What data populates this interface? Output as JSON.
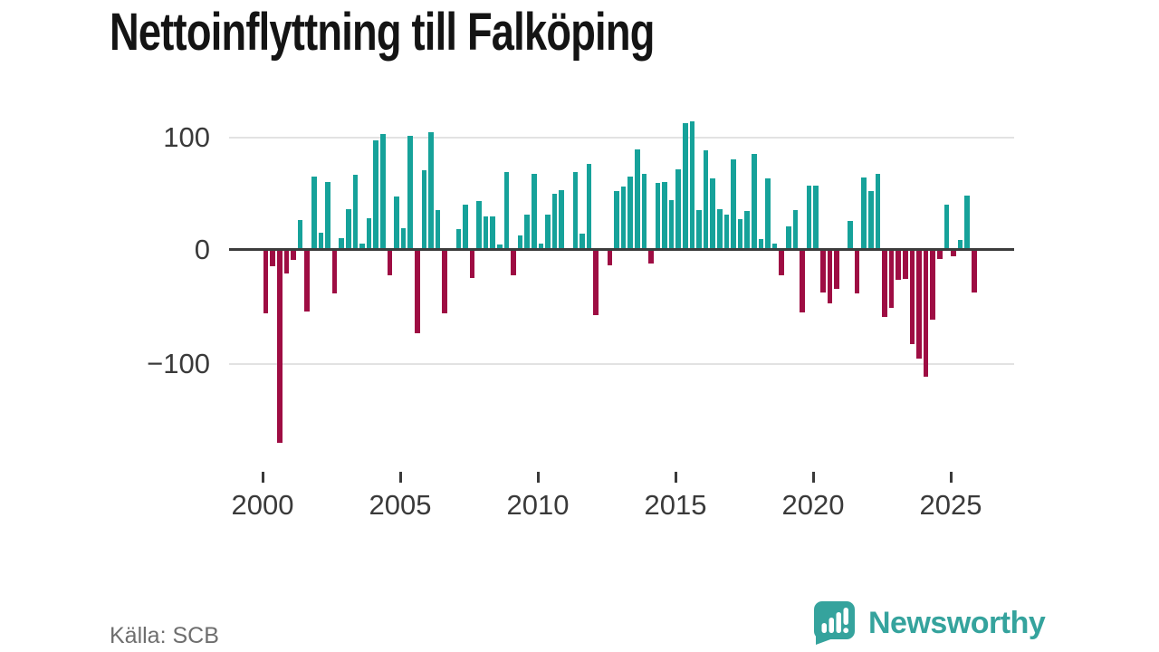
{
  "title": "Nettoinflyttning till Falköping",
  "source": "Källa: SCB",
  "branding": {
    "logo_text": "Newsworthy",
    "logo_icon": "bar-chart-speech-bubble-icon",
    "brand_color": "#35a39d"
  },
  "chart_data": {
    "type": "bar",
    "title": "Nettoinflyttning till Falköping",
    "x_unit": "quarter",
    "x_range": "2000Q1–2025Q4",
    "x_tick_labels": [
      "2000",
      "2005",
      "2010",
      "2015",
      "2020",
      "2025"
    ],
    "y_tick_labels": [
      "100",
      "0",
      "−100"
    ],
    "ylim": [
      -180,
      120
    ],
    "grid_values": [
      100,
      -100
    ],
    "legend": "none",
    "positive_color": "#16a29a",
    "negative_color": "#9e0d43",
    "values_by_year": {
      "2000": [
        -56,
        -14,
        -171,
        -20
      ],
      "2001": [
        -8,
        25,
        -54,
        64
      ],
      "2002": [
        14,
        59,
        -38,
        9
      ],
      "2003": [
        35,
        65,
        4,
        27
      ],
      "2004": [
        96,
        102,
        -22,
        46
      ],
      "2005": [
        18,
        100,
        -73,
        69
      ],
      "2006": [
        103,
        34,
        -56,
        0
      ],
      "2007": [
        17,
        39,
        -24,
        42
      ],
      "2008": [
        28,
        28,
        3,
        68
      ],
      "2009": [
        -22,
        11,
        30,
        66
      ],
      "2010": [
        4,
        30,
        48,
        52
      ],
      "2011": [
        0,
        68,
        13,
        75
      ],
      "2012": [
        -57,
        0,
        -13,
        51
      ],
      "2013": [
        55,
        64,
        88,
        66
      ],
      "2014": [
        -11,
        58,
        59,
        43
      ],
      "2015": [
        70,
        111,
        113,
        34
      ],
      "2016": [
        87,
        62,
        35,
        30
      ],
      "2017": [
        79,
        26,
        33,
        84
      ],
      "2018": [
        8,
        62,
        4,
        -22
      ],
      "2019": [
        19,
        34,
        -55,
        56
      ],
      "2020": [
        56,
        -37,
        -47,
        -34
      ],
      "2021": [
        0,
        24,
        -38,
        63
      ],
      "2022": [
        51,
        66,
        -59,
        -51
      ],
      "2023": [
        -26,
        -25,
        -83,
        -96
      ],
      "2024": [
        -112,
        -61,
        -7,
        39
      ],
      "2025": [
        -5,
        7,
        47,
        -37
      ]
    }
  }
}
